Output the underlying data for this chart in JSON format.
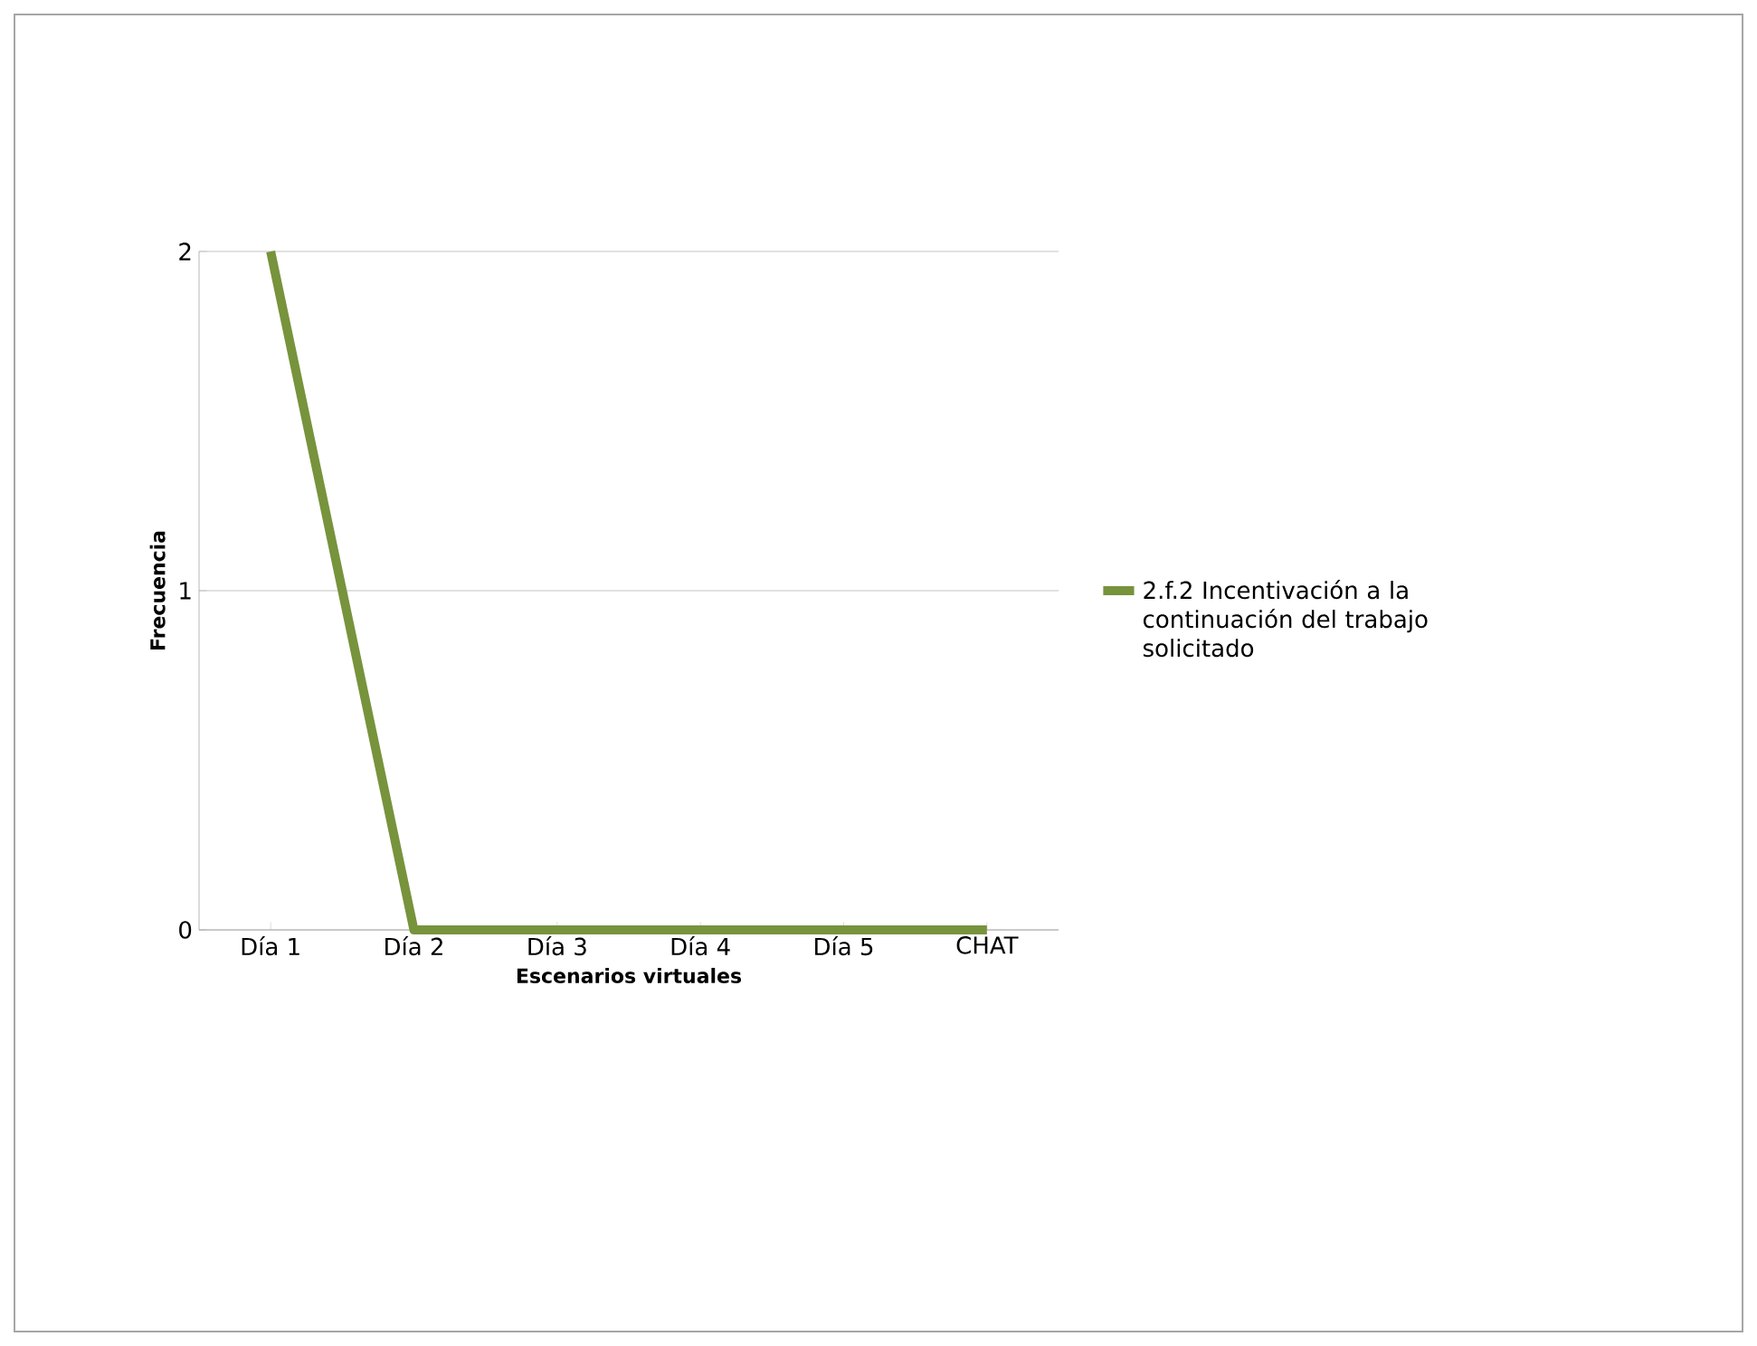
{
  "chart_data": {
    "type": "line",
    "xlabel": "Escenarios virtuales",
    "ylabel": "Frecuencia",
    "categories": [
      "Día 1",
      "Día 2",
      "Día 3",
      "Día 4",
      "Día 5",
      "CHAT"
    ],
    "series": [
      {
        "name": "2.f.2 Incentivación a la continuación del trabajo solicitado",
        "color": "#77933c",
        "values": [
          2,
          0,
          0,
          0,
          0,
          0
        ]
      }
    ],
    "ylim": [
      0,
      2
    ],
    "yticks": [
      0,
      1,
      2
    ],
    "grid": "y",
    "legend": "right",
    "marker": "none",
    "line_style": "solid"
  }
}
